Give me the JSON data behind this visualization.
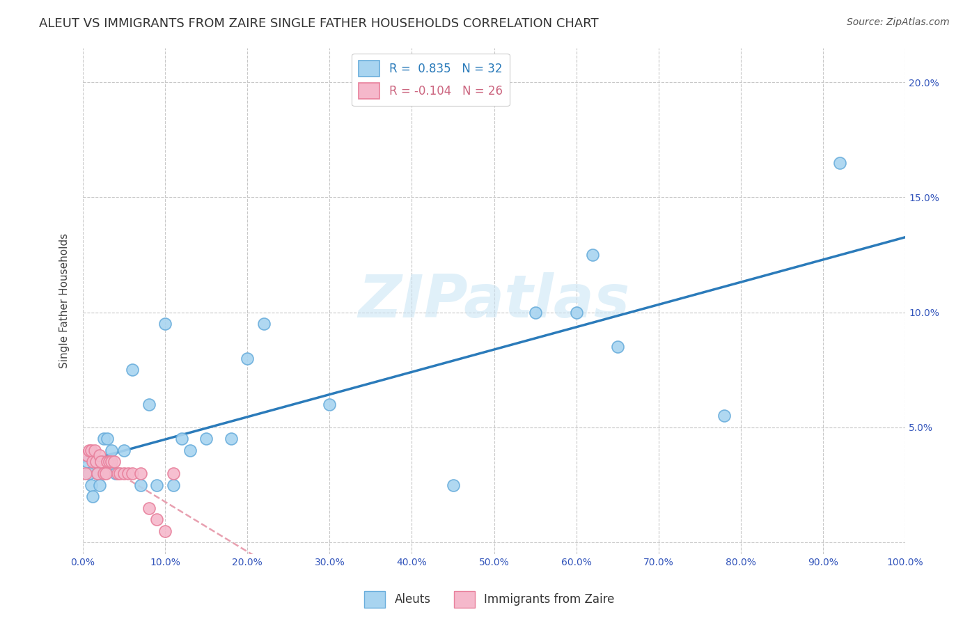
{
  "title": "ALEUT VS IMMIGRANTS FROM ZAIRE SINGLE FATHER HOUSEHOLDS CORRELATION CHART",
  "source": "Source: ZipAtlas.com",
  "ylabel": "Single Father Households",
  "background_color": "#ffffff",
  "grid_color": "#c8c8c8",
  "watermark_text": "ZIPatlas",
  "aleut_color": "#a8d4f0",
  "aleut_edge_color": "#6aaedc",
  "zaire_color": "#f5b8cb",
  "zaire_edge_color": "#e8809c",
  "trendline_aleut_color": "#2b7bba",
  "trendline_zaire_color": "#e8a0b0",
  "legend_R_aleut": " 0.835",
  "legend_N_aleut": "32",
  "legend_R_zaire": "-0.104",
  "legend_N_zaire": "26",
  "aleut_x": [
    0.5,
    0.8,
    1.0,
    1.2,
    1.5,
    1.8,
    2.0,
    2.5,
    3.0,
    3.5,
    4.0,
    5.0,
    6.0,
    7.0,
    8.0,
    9.0,
    10.0,
    11.0,
    12.0,
    13.0,
    15.0,
    18.0,
    20.0,
    22.0,
    30.0,
    45.0,
    55.0,
    60.0,
    62.0,
    65.0,
    78.0,
    92.0
  ],
  "aleut_y": [
    3.5,
    3.0,
    2.5,
    2.0,
    3.5,
    3.0,
    2.5,
    4.5,
    4.5,
    4.0,
    3.0,
    4.0,
    7.5,
    2.5,
    6.0,
    2.5,
    9.5,
    2.5,
    4.5,
    4.0,
    4.5,
    4.5,
    8.0,
    9.5,
    6.0,
    2.5,
    10.0,
    10.0,
    12.5,
    8.5,
    5.5,
    16.5
  ],
  "zaire_x": [
    0.3,
    0.5,
    0.8,
    1.0,
    1.2,
    1.4,
    1.6,
    1.8,
    2.0,
    2.2,
    2.5,
    2.8,
    3.0,
    3.2,
    3.5,
    3.8,
    4.2,
    4.5,
    5.0,
    5.5,
    6.0,
    7.0,
    8.0,
    9.0,
    10.0,
    11.0
  ],
  "zaire_y": [
    3.0,
    3.8,
    4.0,
    4.0,
    3.5,
    4.0,
    3.5,
    3.0,
    3.8,
    3.5,
    3.0,
    3.0,
    3.5,
    3.5,
    3.5,
    3.5,
    3.0,
    3.0,
    3.0,
    3.0,
    3.0,
    3.0,
    1.5,
    1.0,
    0.5,
    3.0
  ],
  "xlim": [
    0,
    100
  ],
  "ylim": [
    -0.5,
    21.5
  ],
  "xticks": [
    0,
    10,
    20,
    30,
    40,
    50,
    60,
    70,
    80,
    90,
    100
  ],
  "xtick_labels": [
    "0.0%",
    "10.0%",
    "20.0%",
    "30.0%",
    "40.0%",
    "50.0%",
    "60.0%",
    "70.0%",
    "80.0%",
    "90.0%",
    "100.0%"
  ],
  "yticks": [
    0,
    5,
    10,
    15,
    20
  ],
  "ytick_labels": [
    "",
    "5.0%",
    "10.0%",
    "15.0%",
    "20.0%"
  ],
  "title_fontsize": 13,
  "tick_fontsize": 10,
  "tick_color": "#3355bb"
}
